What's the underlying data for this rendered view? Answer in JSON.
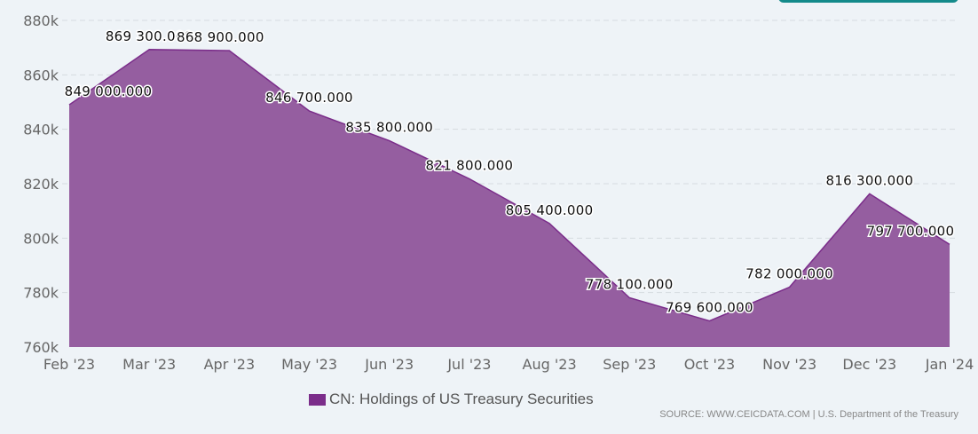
{
  "chart_data": {
    "type": "area",
    "categories": [
      "Feb '23",
      "Mar '23",
      "Apr '23",
      "May '23",
      "Jun '23",
      "Jul '23",
      "Aug '23",
      "Sep '23",
      "Oct '23",
      "Nov '23",
      "Dec '23",
      "Jan '24"
    ],
    "series": [
      {
        "name": "CN: Holdings of US Treasury Securities",
        "values": [
          849000,
          869300,
          868900,
          846700,
          835800,
          821800,
          805400,
          778100,
          769600,
          782000,
          816300,
          797700
        ]
      }
    ],
    "data_labels": [
      "849 000.000",
      "869 300.000",
      "868 900.000",
      "846 700.000",
      "835 800.000",
      "821 800.000",
      "805 400.000",
      "778 100.000",
      "769 600.000",
      "782 000.000",
      "816 300.000",
      "797 700.000"
    ],
    "yticks": [
      760000,
      780000,
      800000,
      820000,
      840000,
      860000,
      880000
    ],
    "ytick_labels": [
      "760k",
      "780k",
      "800k",
      "820k",
      "840k",
      "860k",
      "880k"
    ],
    "ylim": [
      760000,
      880000
    ],
    "grid": true,
    "legend": "bottom-center",
    "colors": {
      "fill": "#955ea0",
      "line": "#7b2d8a"
    }
  },
  "source": "SOURCE: WWW.CEICDATA.COM | U.S. Department of the Treasury"
}
